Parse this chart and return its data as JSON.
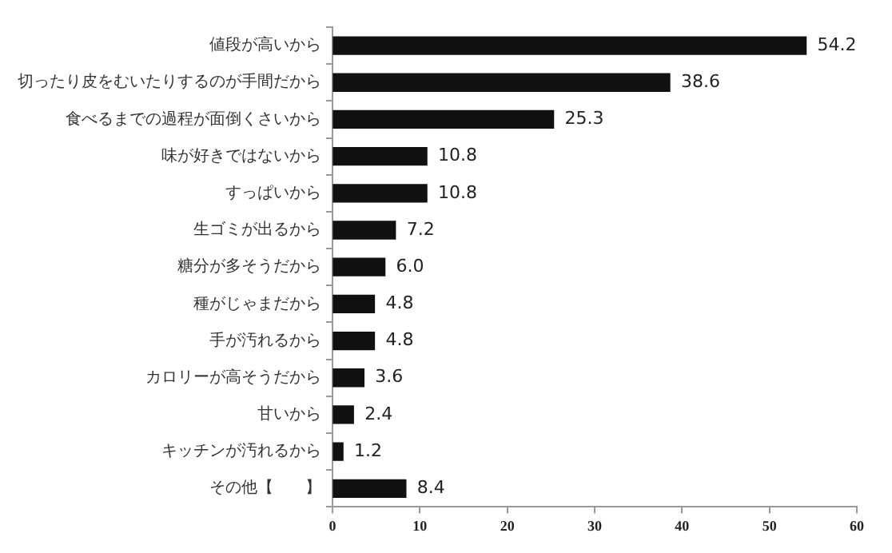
{
  "chart_data": {
    "type": "bar",
    "orientation": "horizontal",
    "categories": [
      "値段が高いから",
      "切ったり皮をむいたりするのが手間だから",
      "食べるまでの過程が面倒くさいから",
      "味が好きではないから",
      "すっぱいから",
      "生ゴミが出るから",
      "糖分が多そうだから",
      "種がじゃまだから",
      "手が汚れるから",
      "カロリーが高そうだから",
      "甘いから",
      "キッチンが汚れるから",
      "その他【　　】"
    ],
    "values": [
      54.2,
      38.6,
      25.3,
      10.8,
      10.8,
      7.2,
      6.0,
      4.8,
      4.8,
      3.6,
      2.4,
      1.2,
      8.4
    ],
    "value_labels": [
      "54.2",
      "38.6",
      "25.3",
      "10.8",
      "10.8",
      "7.2",
      "6.0",
      "4.8",
      "4.8",
      "3.6",
      "2.4",
      "1.2",
      "8.4"
    ],
    "color": "#111111",
    "xlim": [
      0,
      60
    ],
    "xticks": [
      0,
      10,
      20,
      30,
      40,
      50,
      60
    ],
    "grid": false,
    "legend": false
  }
}
